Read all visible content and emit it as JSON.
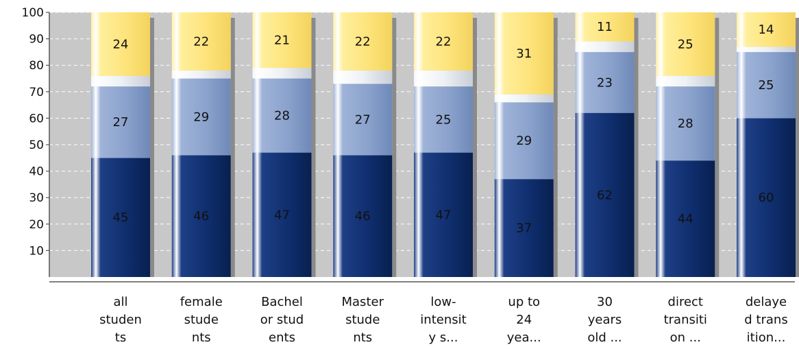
{
  "chart_data": {
    "type": "bar",
    "stacked": true,
    "title": "",
    "xlabel": "",
    "ylabel": "",
    "ylim": [
      0,
      100
    ],
    "yticks": [
      10,
      20,
      30,
      40,
      50,
      60,
      70,
      80,
      90,
      100
    ],
    "grid": true,
    "categories": [
      [
        "all",
        "studen",
        "ts"
      ],
      [
        "female",
        "stude",
        "nts"
      ],
      [
        "Bachel",
        "or stud",
        "ents"
      ],
      [
        "Master",
        "stude",
        "nts"
      ],
      [
        "low-",
        "intensit",
        "y s..."
      ],
      [
        "up to",
        "24",
        "yea..."
      ],
      [
        "30",
        "years",
        "old ..."
      ],
      [
        "direct",
        "transiti",
        "on ..."
      ],
      [
        "delaye",
        "d trans",
        "ition..."
      ]
    ],
    "series": [
      {
        "values": [
          45,
          46,
          47,
          46,
          47,
          37,
          62,
          44,
          60
        ],
        "color": "#0f2e6e"
      },
      {
        "values": [
          27,
          29,
          28,
          27,
          25,
          29,
          23,
          28,
          25
        ],
        "color": "#8aa2cc"
      },
      {
        "values": [
          4,
          3,
          4,
          5,
          6,
          3,
          4,
          4,
          2
        ],
        "color": "#e4e8ee"
      },
      {
        "values": [
          24,
          22,
          21,
          22,
          22,
          31,
          11,
          25,
          14
        ],
        "color": "#fde37a"
      }
    ],
    "label_series": [
      0,
      1,
      3
    ]
  }
}
